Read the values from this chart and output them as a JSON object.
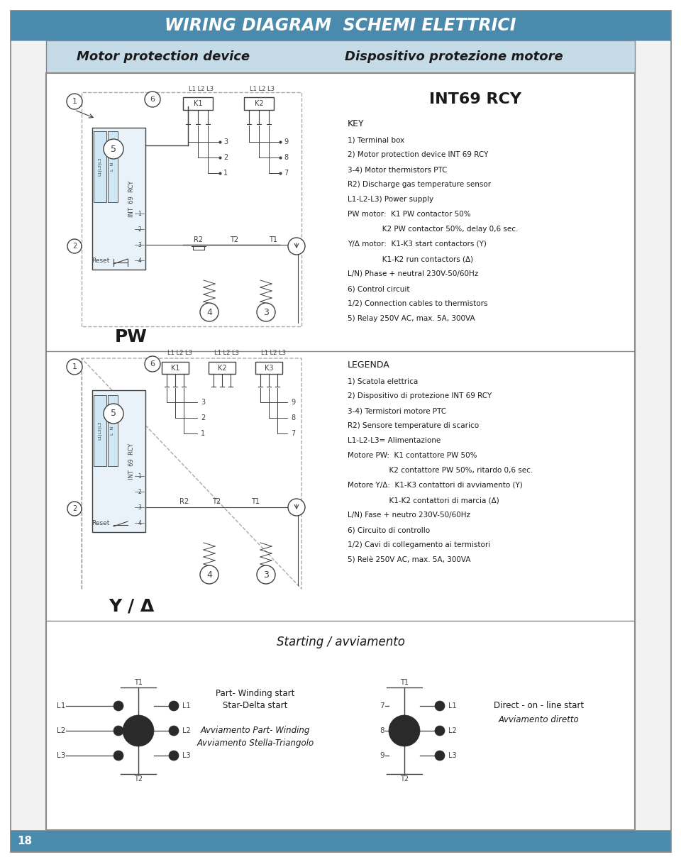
{
  "page_bg": "#ffffff",
  "outer_border_color": "#555555",
  "header_bg": "#4a8aad",
  "header_text": "WIRING DIAGRAM  SCHEMI ELETTRICI",
  "header_text_color": "#ffffff",
  "subheader_bg": "#c5dce8",
  "subheader_text_left": "Motor protection device",
  "subheader_text_right": "Dispositivo protezione motore",
  "subheader_text_color": "#1a1a1a",
  "footer_bg": "#4a8aad",
  "footer_text": "18",
  "footer_text_color": "#ffffff",
  "content_bg": "#ffffff",
  "int69_title": "INT69 RCY",
  "key_title": "KEY",
  "key_lines_en": [
    "1) Terminal box",
    "2) Motor protection device INT 69 RCY",
    "3-4) Motor thermistors PTC",
    "R2) Discharge gas temperature sensor",
    "L1-L2-L3) Power supply",
    "PW motor:  K1 PW contactor 50%",
    "               K2 PW contactor 50%, delay 0,6 sec.",
    "Y/Δ motor:  K1-K3 start contactors (Y)",
    "               K1-K2 run contactors (Δ)",
    "L/N) Phase + neutral 230V-50/60Hz",
    "6) Control circuit",
    "1/2) Connection cables to thermistors",
    "5) Relay 250V AC, max. 5A, 300VA"
  ],
  "pw_label": "PW",
  "legenda_title": "LEGENDA",
  "key_lines_it": [
    "1) Scatola elettrica",
    "2) Dispositivo di protezione INT 69 RCY",
    "3-4) Termistori motore PTC",
    "R2) Sensore temperature di scarico",
    "L1-L2-L3= Alimentazione",
    "Motore PW:  K1 contattore PW 50%",
    "                  K2 contattore PW 50%, ritardo 0,6 sec.",
    "Motore Y/Δ:  K1-K3 contattori di avviamento (Y)",
    "                  K1-K2 contattori di marcia (Δ)",
    "L/N) Fase + neutro 230V-50/60Hz",
    "6) Circuito di controllo",
    "1/2) Cavi di collegamento ai termistori",
    "5) Relè 250V AC, max. 5A, 300VA"
  ],
  "yd_label": "Y / Δ",
  "starting_label": "Starting / avviamento",
  "part_winding_line1": "Part- Winding start",
  "part_winding_line2": "Star-Delta start",
  "part_winding_it1": "Avviamento Part- Winding",
  "part_winding_it2": "Avviamento Stella-Triangolo",
  "direct_line1": "Direct - on - line start",
  "direct_line2": "Avviamento diretto",
  "diagram_line_color": "#404040",
  "dashed_line_color": "#aaaaaa",
  "node_dark": "#1a1a1a",
  "node_light": "#e8e8e8",
  "diag_border": "#888888"
}
